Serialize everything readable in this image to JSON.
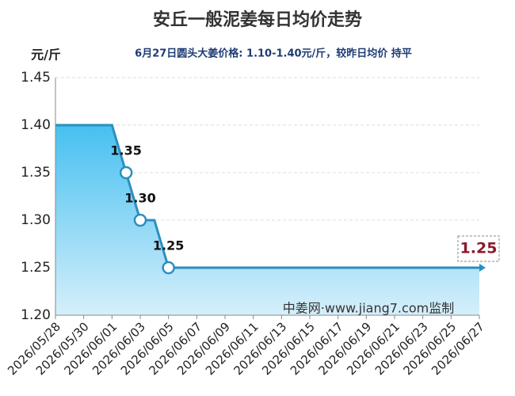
{
  "chart_data": {
    "type": "line",
    "title": "安丘一般泥姜每日均价走势",
    "y_unit": "元/斤",
    "subtitle": "6月27日圆头大姜价格: 1.10-1.40元/斤，较昨日均价 持平",
    "watermark": "中姜网·www.jiang7.com监制",
    "categories": [
      "2026/05/28",
      null,
      "2026/05/30",
      null,
      "2026/06/01",
      null,
      "2026/06/03",
      null,
      "2026/06/05",
      null,
      "2026/06/07",
      null,
      "2026/06/09",
      null,
      "2026/06/11",
      null,
      "2026/06/13",
      null,
      "2026/06/15",
      null,
      "2026/06/17",
      null,
      "2026/06/19",
      null,
      "2026/06/21",
      null,
      "2026/06/23",
      null,
      "2026/06/25",
      null,
      "2026/06/27"
    ],
    "values": [
      1.4,
      1.4,
      1.4,
      1.4,
      1.4,
      1.35,
      1.3,
      1.3,
      1.25,
      1.25,
      1.25,
      1.25,
      1.25,
      1.25,
      1.25,
      1.25,
      1.25,
      1.25,
      1.25,
      1.25,
      1.25,
      1.25,
      1.25,
      1.25,
      1.25,
      1.25,
      1.25,
      1.25,
      1.25,
      1.25,
      1.25
    ],
    "value_labels": [
      null,
      null,
      null,
      null,
      null,
      "1.35",
      "1.30",
      null,
      "1.25",
      null,
      null,
      null,
      null,
      null,
      null,
      null,
      null,
      null,
      null,
      null,
      null,
      null,
      null,
      null,
      null,
      null,
      null,
      null,
      null,
      null,
      "1.25"
    ],
    "color": "#2a8fc0",
    "ylim": [
      1.2,
      1.45
    ],
    "yticks": [
      {
        "value": 1.2,
        "label": "1.20"
      },
      {
        "value": 1.25,
        "label": "1.25"
      },
      {
        "value": 1.3,
        "label": "1.30"
      },
      {
        "value": 1.35,
        "label": "1.35"
      },
      {
        "value": 1.4,
        "label": "1.40"
      },
      {
        "value": 1.45,
        "label": "1.45"
      }
    ],
    "grid": true
  }
}
